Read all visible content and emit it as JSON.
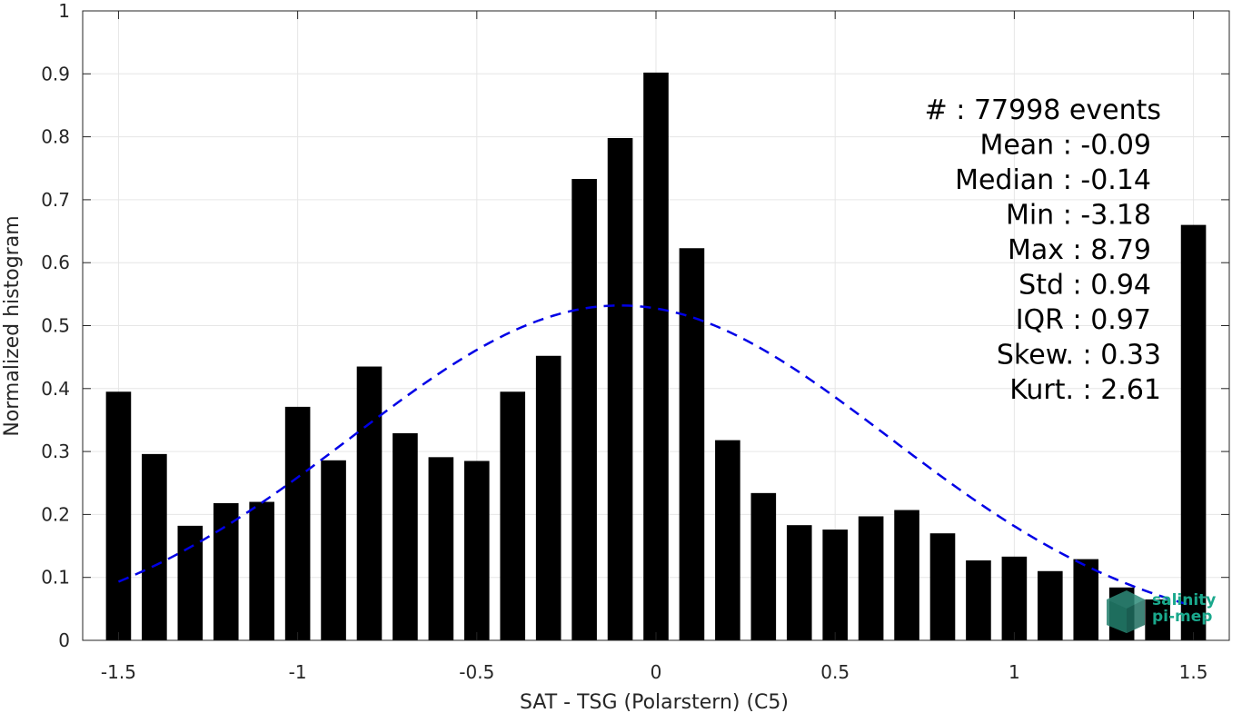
{
  "chart_data": {
    "type": "bar",
    "xlabel": "SAT - TSG (Polarstern) (C5)",
    "ylabel": "Normalized histogram",
    "xlim": [
      -1.6,
      1.6
    ],
    "ylim": [
      0,
      1
    ],
    "xticks": [
      -1.5,
      -1,
      -0.5,
      0,
      0.5,
      1,
      1.5
    ],
    "xtick_labels": [
      "-1.5",
      "-1",
      "-0.5",
      "0",
      "0.5",
      "1",
      "1.5"
    ],
    "yticks": [
      0,
      0.1,
      0.2,
      0.3,
      0.4,
      0.5,
      0.6,
      0.7,
      0.8,
      0.9,
      1
    ],
    "ytick_labels": [
      "0",
      "0.1",
      "0.2",
      "0.3",
      "0.4",
      "0.5",
      "0.6",
      "0.7",
      "0.8",
      "0.9",
      "1"
    ],
    "grid": true,
    "bar_color": "#000000",
    "curve_color": "#0000e6",
    "x": [
      -1.5,
      -1.4,
      -1.3,
      -1.2,
      -1.1,
      -1.0,
      -0.9,
      -0.8,
      -0.7,
      -0.6,
      -0.5,
      -0.4,
      -0.3,
      -0.2,
      -0.1,
      0.0,
      0.1,
      0.2,
      0.3,
      0.4,
      0.5,
      0.6,
      0.7,
      0.8,
      0.9,
      1.0,
      1.1,
      1.2,
      1.3,
      1.4,
      1.5
    ],
    "values": [
      0.395,
      0.296,
      0.182,
      0.218,
      0.22,
      0.371,
      0.286,
      0.435,
      0.329,
      0.291,
      0.285,
      0.395,
      0.452,
      0.733,
      0.798,
      0.902,
      0.623,
      0.318,
      0.234,
      0.183,
      0.176,
      0.197,
      0.207,
      0.17,
      0.127,
      0.133,
      0.11,
      0.129,
      0.084,
      0.065,
      0.66
    ],
    "fit_curve": {
      "style": "dashed",
      "mean": -0.1,
      "std": 0.75,
      "peak": 0.532,
      "x_range": [
        -1.5,
        1.5
      ]
    },
    "annotations": [
      "#  : 77998 events",
      "Mean : -0.09",
      "Median : -0.14",
      "Min : -3.18",
      "Max : 8.79",
      "Std : 0.94",
      "IQR : 0.97",
      "Skew. : 0.33",
      "Kurt. : 2.61"
    ]
  },
  "logo": {
    "line1": "salinity",
    "line2": "pi-mep",
    "color": "#1aa88c"
  }
}
